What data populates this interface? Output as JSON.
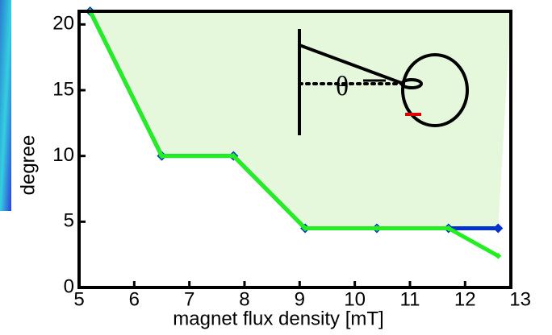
{
  "chart_data": {
    "type": "line",
    "x_label": "magnet flux density [mT]",
    "y_label": "degree",
    "annotation": "θ",
    "x": [
      5.2,
      6.5,
      7.8,
      9.1,
      10.4,
      11.7,
      12.6
    ],
    "series": [
      {
        "color": "#0033cc",
        "values": [
          21,
          10,
          10,
          4.5,
          4.5,
          4.5,
          4.5
        ]
      },
      {
        "color": "#22ee22",
        "values": [
          21,
          10,
          10,
          4.5,
          4.5,
          4.5,
          2.4
        ]
      }
    ],
    "xlim": [
      5,
      12.83
    ],
    "xticks": [
      5,
      6,
      7,
      8,
      9,
      10,
      11,
      12,
      13
    ],
    "ylim": [
      0,
      21
    ],
    "yticks": [
      0,
      5,
      10,
      15,
      20
    ],
    "fill_color": "#e6f8dc"
  }
}
